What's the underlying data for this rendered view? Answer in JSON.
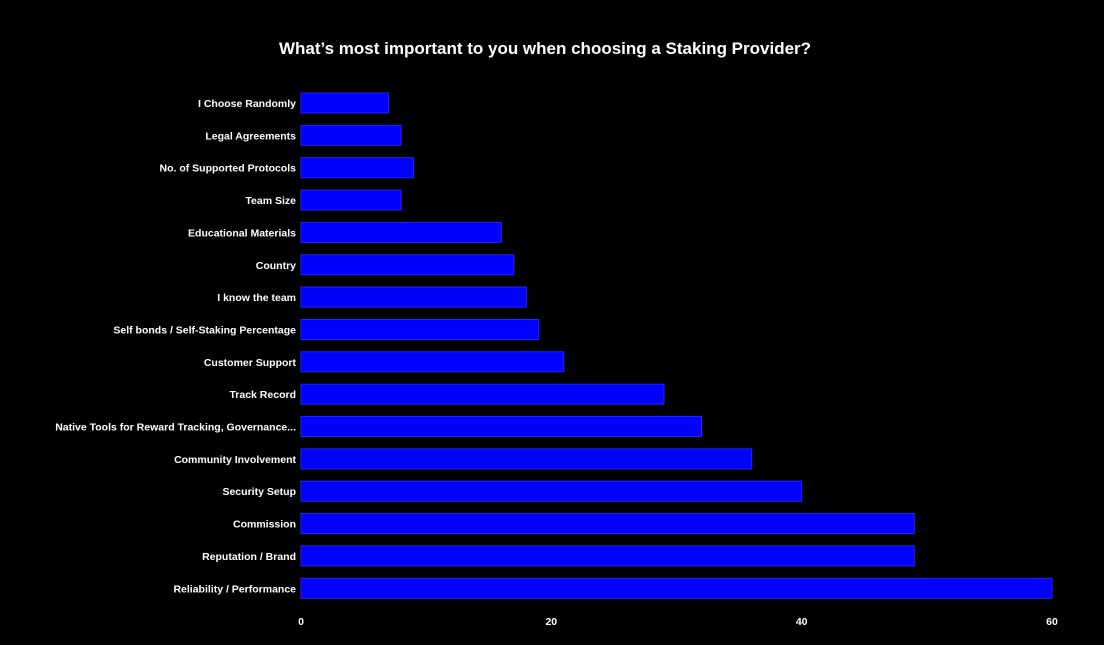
{
  "chart_data": {
    "type": "bar",
    "orientation": "horizontal",
    "title": "What’s most important to you when choosing a Staking Provider?",
    "xlabel": "",
    "ylabel": "",
    "categories": [
      "I Choose Randomly",
      "Legal Agreements",
      "No. of Supported Protocols",
      "Team Size",
      "Educational Materials",
      "Country",
      "I know the team",
      "Self bonds / Self-Staking Percentage",
      "Customer Support",
      "Track Record",
      "Native Tools for Reward Tracking, Governance...",
      "Community Involvement",
      "Security Setup",
      "Commission",
      "Reputation / Brand",
      "Reliability / Performance"
    ],
    "values": [
      7,
      8,
      9,
      8,
      16,
      17,
      18,
      19,
      21,
      29,
      32,
      36,
      40,
      49,
      49,
      60
    ],
    "xlim": [
      0,
      60
    ],
    "xticks": [
      0,
      20,
      40,
      60
    ],
    "grid": false,
    "legend": "none",
    "colors": {
      "background": "#000000",
      "bar_fill": "#0000ff",
      "bar_stroke": "#2222ff",
      "text": "#ffffff"
    }
  }
}
